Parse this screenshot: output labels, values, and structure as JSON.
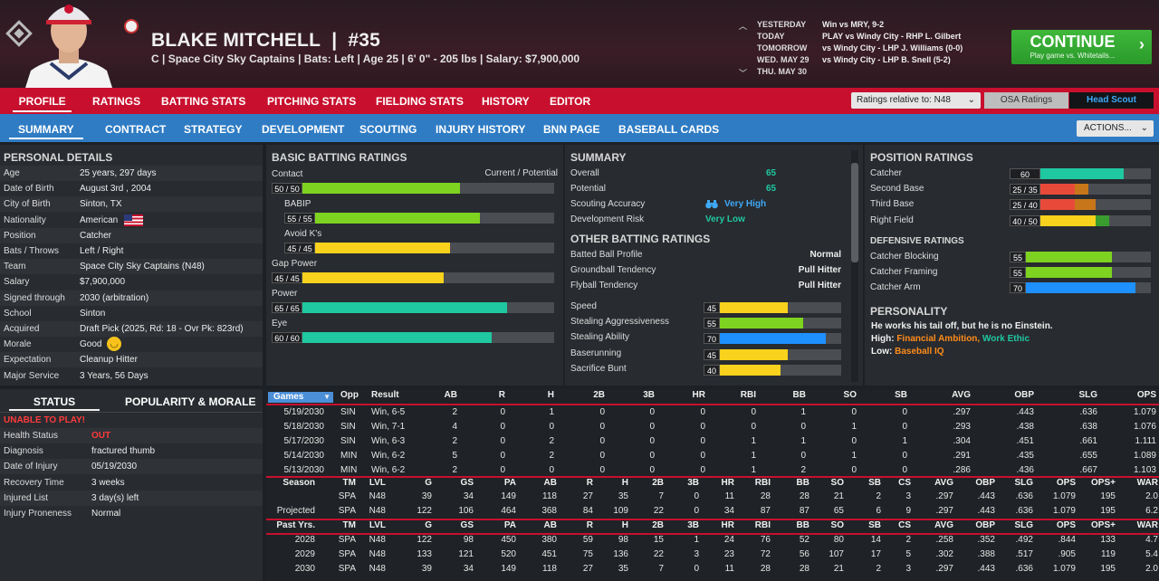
{
  "header": {
    "player_name": "BLAKE MITCHELL",
    "separator": "|",
    "number": "#35",
    "info": "C | Space City Sky Captains  |  Bats: Left  |  Age 25  |  6' 0\" - 205 lbs  |  Salary: $7,900,000",
    "schedule": [
      {
        "day": "YESTERDAY",
        "game": "Win vs MRY, 9-2"
      },
      {
        "day": "TODAY",
        "game": "PLAY vs Windy City - RHP L. Gilbert"
      },
      {
        "day": "TOMORROW",
        "game": "vs Windy City - LHP J. Williams (0-0)"
      },
      {
        "day": "WED. MAY 29",
        "game": "vs Windy City - LHP B. Snell (5-2)"
      },
      {
        "day": "THU. MAY 30",
        "game": ""
      }
    ],
    "continue_label": "CONTINUE",
    "continue_sub": "Play game vs. Whitetails..."
  },
  "nav1": {
    "tabs": [
      "PROFILE",
      "RATINGS",
      "BATTING STATS",
      "PITCHING STATS",
      "FIELDING STATS",
      "HISTORY",
      "EDITOR"
    ],
    "ratings_relative": "Ratings relative to: N48",
    "osa": "OSA Ratings",
    "scout": "Head Scout"
  },
  "nav2": {
    "tabs": [
      "SUMMARY",
      "CONTRACT",
      "STRATEGY",
      "DEVELOPMENT",
      "SCOUTING",
      "INJURY HISTORY",
      "BNN PAGE",
      "BASEBALL CARDS"
    ],
    "actions": "ACTIONS..."
  },
  "personal": {
    "title": "PERSONAL DETAILS",
    "rows": [
      {
        "label": "Age",
        "value": "25 years, 297 days"
      },
      {
        "label": "Date of Birth",
        "value": "August 3rd , 2004"
      },
      {
        "label": "City of Birth",
        "value": "Sinton, TX"
      },
      {
        "label": "Nationality",
        "value": "American"
      },
      {
        "label": "Position",
        "value": "Catcher"
      },
      {
        "label": "Bats / Throws",
        "value": "Left / Right"
      },
      {
        "label": "Team",
        "value": "Space City Sky Captains (N48)"
      },
      {
        "label": "Salary",
        "value": "$7,900,000"
      },
      {
        "label": "Signed through",
        "value": "2030 (arbitration)"
      },
      {
        "label": "School",
        "value": "Sinton"
      },
      {
        "label": "Acquired",
        "value": "Draft Pick (2025, Rd: 18 - Ovr Pk: 823rd)"
      },
      {
        "label": "Morale",
        "value": "Good"
      },
      {
        "label": "Expectation",
        "value": "Cleanup Hitter"
      },
      {
        "label": "Major Service",
        "value": "3 Years, 56 Days"
      }
    ]
  },
  "status": {
    "tab_status": "STATUS",
    "tab_pop": "POPULARITY & MORALE",
    "alert": "UNABLE TO PLAY!",
    "rows": [
      {
        "label": "Health Status",
        "value": "OUT",
        "red": true
      },
      {
        "label": "Diagnosis",
        "value": "fractured thumb"
      },
      {
        "label": "Date of Injury",
        "value": "05/19/2030"
      },
      {
        "label": "Recovery Time",
        "value": "3 weeks"
      },
      {
        "label": "Injured List",
        "value": "3 day(s) left"
      },
      {
        "label": "Injury Proneness",
        "value": "Normal"
      }
    ]
  },
  "batting": {
    "title": "BASIC BATTING RATINGS",
    "cp_label": "Current / Potential",
    "rows": [
      {
        "label": "Contact",
        "text": "50 / 50",
        "value": 50,
        "color": "#7ed321"
      },
      {
        "label": "BABIP",
        "text": "55 / 55",
        "value": 55,
        "color": "#7ed321"
      },
      {
        "label": "Avoid K's",
        "text": "45 / 45",
        "value": 45,
        "color": "#f8d21c"
      },
      {
        "label": "Gap Power",
        "text": "45 / 45",
        "value": 45,
        "color": "#f8d21c"
      },
      {
        "label": "Power",
        "text": "65 / 65",
        "value": 65,
        "color": "#1fc8a0"
      },
      {
        "label": "Eye",
        "text": "60 / 60",
        "value": 60,
        "color": "#1fc8a0"
      }
    ]
  },
  "summary": {
    "title": "SUMMARY",
    "overall_label": "Overall",
    "overall": "65",
    "potential_label": "Potential",
    "potential": "65",
    "scout_label": "Scouting Accuracy",
    "scout": "Very High",
    "risk_label": "Development Risk",
    "risk": "Very Low",
    "other_title": "OTHER BATTING RATINGS",
    "text_rows": [
      {
        "label": "Batted Ball Profile",
        "value": "Normal"
      },
      {
        "label": "Groundball Tendency",
        "value": "Pull Hitter"
      },
      {
        "label": "Flyball Tendency",
        "value": "Pull Hitter"
      }
    ],
    "bar_rows": [
      {
        "label": "Speed",
        "value": 45,
        "color": "#f8d21c"
      },
      {
        "label": "Stealing Aggressiveness",
        "value": 55,
        "color": "#7ed321"
      },
      {
        "label": "Stealing Ability",
        "value": 70,
        "color": "#1e90ff"
      },
      {
        "label": "Baserunning",
        "value": 45,
        "color": "#f8d21c"
      },
      {
        "label": "Sacrifice Bunt",
        "value": 40,
        "color": "#f8d21c"
      }
    ]
  },
  "position": {
    "title": "POSITION RATINGS",
    "rows": [
      {
        "label": "Catcher",
        "text": "60",
        "cur": 60,
        "pot": 60,
        "color": "#1fc8a0"
      },
      {
        "label": "Second Base",
        "text": "25 / 35",
        "cur": 25,
        "pot": 35,
        "color": "#e84a3a"
      },
      {
        "label": "Third Base",
        "text": "25 / 40",
        "cur": 25,
        "pot": 40,
        "color": "#e84a3a"
      },
      {
        "label": "Right Field",
        "text": "40 / 50",
        "cur": 40,
        "pot": 50,
        "color": "#f8d21c"
      }
    ],
    "def_title": "DEFENSIVE RATINGS",
    "def_rows": [
      {
        "label": "Catcher Blocking",
        "value": 55,
        "color": "#7ed321"
      },
      {
        "label": "Catcher Framing",
        "value": 55,
        "color": "#7ed321"
      },
      {
        "label": "Catcher Arm",
        "value": 70,
        "color": "#1e90ff"
      }
    ],
    "pers_title": "PERSONALITY",
    "pers_line": "He works his tail off, but he is no Einstein.",
    "high_label": "High:",
    "high1": "Financial Ambition,",
    "high2": "Work Ethic",
    "low_label": "Low:",
    "low1": "Baseball IQ"
  },
  "games": {
    "select": "Games",
    "cols": [
      "Opp",
      "Result",
      "AB",
      "R",
      "H",
      "2B",
      "3B",
      "HR",
      "RBI",
      "BB",
      "SO",
      "SB",
      "AVG",
      "OBP",
      "SLG",
      "OPS"
    ],
    "rows": [
      [
        "5/19/2030",
        "SIN",
        "Win, 6-5",
        "2",
        "0",
        "1",
        "0",
        "0",
        "0",
        "0",
        "1",
        "0",
        "0",
        ".297",
        ".443",
        ".636",
        "1.079"
      ],
      [
        "5/18/2030",
        "SIN",
        "Win, 7-1",
        "4",
        "0",
        "0",
        "0",
        "0",
        "0",
        "0",
        "0",
        "1",
        "0",
        ".293",
        ".438",
        ".638",
        "1.076"
      ],
      [
        "5/17/2030",
        "SIN",
        "Win, 6-3",
        "2",
        "0",
        "2",
        "0",
        "0",
        "0",
        "1",
        "1",
        "0",
        "1",
        ".304",
        ".451",
        ".661",
        "1.111"
      ],
      [
        "5/14/2030",
        "MIN",
        "Win, 6-2",
        "5",
        "0",
        "2",
        "0",
        "0",
        "0",
        "1",
        "0",
        "1",
        "0",
        ".291",
        ".435",
        ".655",
        "1.089"
      ],
      [
        "5/13/2030",
        "MIN",
        "Win, 6-2",
        "2",
        "0",
        "0",
        "0",
        "0",
        "0",
        "1",
        "2",
        "0",
        "0",
        ".286",
        ".436",
        ".667",
        "1.103"
      ]
    ]
  },
  "season": {
    "head": [
      "Season",
      "TM",
      "LVL",
      "G",
      "GS",
      "PA",
      "AB",
      "R",
      "H",
      "2B",
      "3B",
      "HR",
      "RBI",
      "BB",
      "SO",
      "SB",
      "CS",
      "AVG",
      "OBP",
      "SLG",
      "OPS",
      "OPS+",
      "WAR"
    ],
    "rows": [
      [
        "",
        "SPA",
        "N48",
        "39",
        "34",
        "149",
        "118",
        "27",
        "35",
        "7",
        "0",
        "11",
        "28",
        "28",
        "21",
        "2",
        "3",
        ".297",
        ".443",
        ".636",
        "1.079",
        "195",
        "2.0"
      ],
      [
        "Projected",
        "SPA",
        "N48",
        "122",
        "106",
        "464",
        "368",
        "84",
        "109",
        "22",
        "0",
        "34",
        "87",
        "87",
        "65",
        "6",
        "9",
        ".297",
        ".443",
        ".636",
        "1.079",
        "195",
        "6.2"
      ]
    ],
    "past_head": [
      "Past Yrs.",
      "TM",
      "LVL",
      "G",
      "GS",
      "PA",
      "AB",
      "R",
      "H",
      "2B",
      "3B",
      "HR",
      "RBI",
      "BB",
      "SO",
      "SB",
      "CS",
      "AVG",
      "OBP",
      "SLG",
      "OPS",
      "OPS+",
      "WAR"
    ],
    "past_rows": [
      [
        "2028",
        "SPA",
        "N48",
        "122",
        "98",
        "450",
        "380",
        "59",
        "98",
        "15",
        "1",
        "24",
        "76",
        "52",
        "80",
        "14",
        "2",
        ".258",
        ".352",
        ".492",
        ".844",
        "133",
        "4.7"
      ],
      [
        "2029",
        "SPA",
        "N48",
        "133",
        "121",
        "520",
        "451",
        "75",
        "136",
        "22",
        "3",
        "23",
        "72",
        "56",
        "107",
        "17",
        "5",
        ".302",
        ".388",
        ".517",
        ".905",
        "119",
        "5.4"
      ],
      [
        "2030",
        "SPA",
        "N48",
        "39",
        "34",
        "149",
        "118",
        "27",
        "35",
        "7",
        "0",
        "11",
        "28",
        "28",
        "21",
        "2",
        "3",
        ".297",
        ".443",
        ".636",
        "1.079",
        "195",
        "2.0"
      ]
    ]
  }
}
